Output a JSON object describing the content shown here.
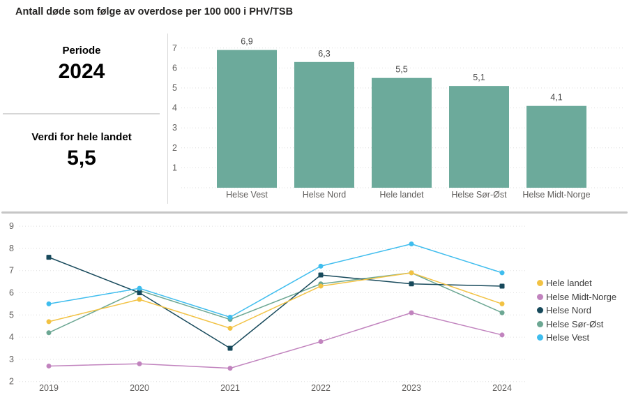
{
  "title": "Antall døde som følge av overdose per 100 000 i PHV/TSB",
  "left_panel": {
    "periode_label": "Periode",
    "periode_value": "2024",
    "verdi_label": "Verdi for hele landet",
    "verdi_value": "5,5"
  },
  "colors": {
    "bar_fill": "#6CAA9B",
    "grid": "#dedede",
    "axis_text": "#605e5c",
    "value_label_text": "#464646",
    "legend_text": "#3b3b3b",
    "series": {
      "Hele landet": "#F2C243",
      "Helse Midt-Norge": "#C183BE",
      "Helse Nord": "#17495B",
      "Helse Sør-Øst": "#6CA793",
      "Helse Vest": "#3FBDEE"
    }
  },
  "chart_data": [
    {
      "type": "bar",
      "title": "Antall døde som følge av overdose per 100 000 i PHV/TSB — 2024",
      "categories": [
        "Helse Vest",
        "Helse Nord",
        "Hele landet",
        "Helse Sør-Øst",
        "Helse Midt-Norge"
      ],
      "values": [
        6.9,
        6.3,
        5.5,
        5.1,
        4.1
      ],
      "value_labels": [
        "6,9",
        "6,3",
        "5,5",
        "5,1",
        "4,1"
      ],
      "xlabel": "",
      "ylabel": "",
      "ylim": [
        0,
        7.4
      ],
      "yticks": [
        1,
        2,
        3,
        4,
        5,
        6,
        7
      ],
      "grid": true,
      "legend_position": "none"
    },
    {
      "type": "line",
      "title": "",
      "categories": [
        "2019",
        "2020",
        "2021",
        "2022",
        "2023",
        "2024"
      ],
      "series": [
        {
          "name": "Hele landet",
          "marker": "circle",
          "values": [
            4.7,
            5.7,
            4.4,
            6.3,
            6.9,
            5.5
          ]
        },
        {
          "name": "Helse Midt-Norge",
          "marker": "circle",
          "values": [
            2.7,
            2.8,
            2.6,
            3.8,
            5.1,
            4.1
          ]
        },
        {
          "name": "Helse Nord",
          "marker": "square",
          "values": [
            7.6,
            6.0,
            3.5,
            6.8,
            6.4,
            6.3
          ]
        },
        {
          "name": "Helse Sør-Øst",
          "marker": "circle",
          "values": [
            4.2,
            6.1,
            4.8,
            6.4,
            6.9,
            5.1
          ]
        },
        {
          "name": "Helse Vest",
          "marker": "circle",
          "values": [
            5.5,
            6.2,
            4.9,
            7.2,
            8.2,
            6.9
          ]
        }
      ],
      "xlabel": "",
      "ylabel": "",
      "ylim": [
        2,
        9
      ],
      "yticks": [
        2,
        3,
        4,
        5,
        6,
        7,
        8,
        9
      ],
      "grid": true,
      "legend_position": "right",
      "legend_items": [
        "Hele landet",
        "Helse Midt-Norge",
        "Helse Nord",
        "Helse Sør-Øst",
        "Helse Vest"
      ]
    }
  ]
}
